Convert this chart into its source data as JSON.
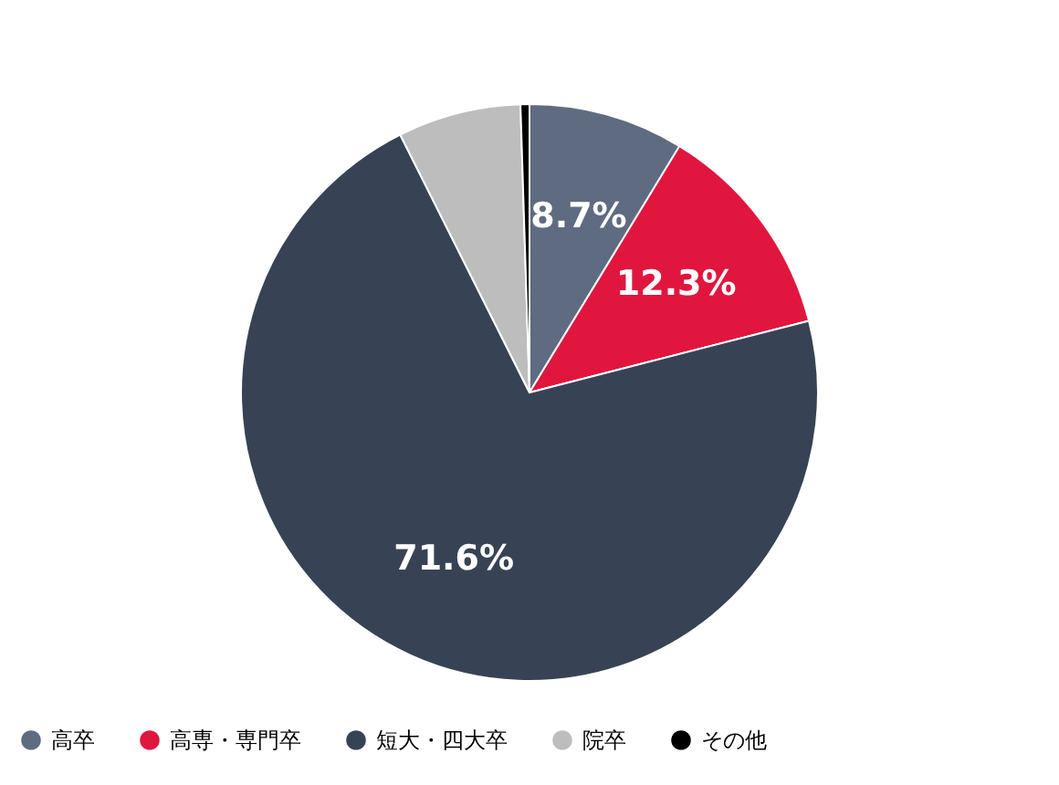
{
  "chart_data": {
    "type": "pie",
    "categories": [
      "高卒",
      "高専・専門卒",
      "短大・四大卒",
      "院卒",
      "その他"
    ],
    "values": [
      8.7,
      12.3,
      71.6,
      6.9,
      0.5
    ],
    "colors": [
      "#5f6b80",
      "#e0163f",
      "#374354",
      "#bdbdbd",
      "#000000"
    ],
    "value_labels": [
      "8.7%",
      "12.3%",
      "71.6%",
      null,
      null
    ],
    "legend": "bottom"
  }
}
